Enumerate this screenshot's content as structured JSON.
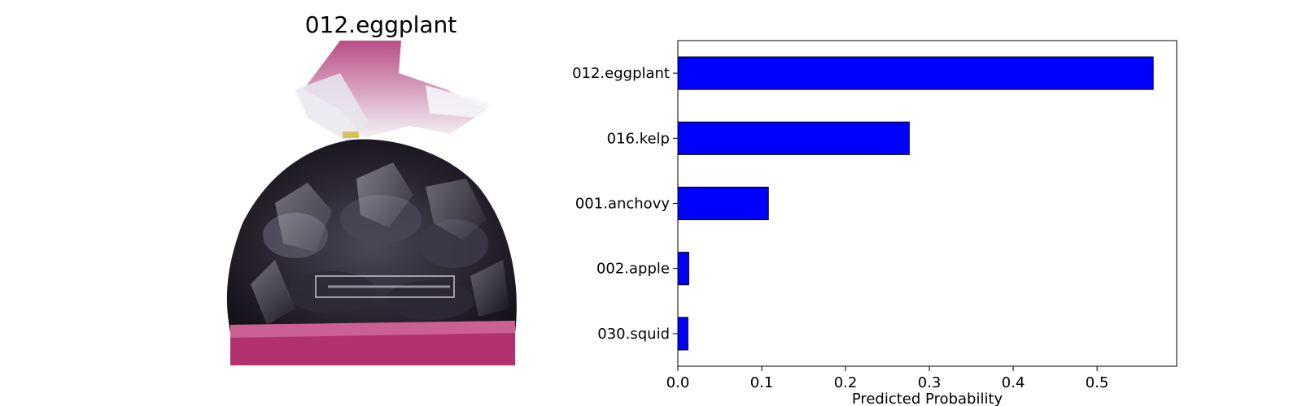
{
  "image_panel": {
    "title": "012.eggplant",
    "subject": "eggplants-in-bag"
  },
  "chart_data": {
    "type": "bar",
    "orientation": "horizontal",
    "categories": [
      "012.eggplant",
      "016.kelp",
      "001.anchovy",
      "002.apple",
      "030.squid"
    ],
    "values": [
      0.567,
      0.276,
      0.108,
      0.013,
      0.012
    ],
    "xlabel": "Predicted Probability",
    "ylabel": "",
    "xlim": [
      0,
      0.595
    ],
    "xticks": [
      0.0,
      0.1,
      0.2,
      0.3,
      0.4,
      0.5
    ],
    "xtick_labels": [
      "0.0",
      "0.1",
      "0.2",
      "0.3",
      "0.4",
      "0.5"
    ],
    "bar_color": "#0000ff",
    "bar_edge_color": "#000000",
    "grid": false,
    "legend": "none"
  }
}
